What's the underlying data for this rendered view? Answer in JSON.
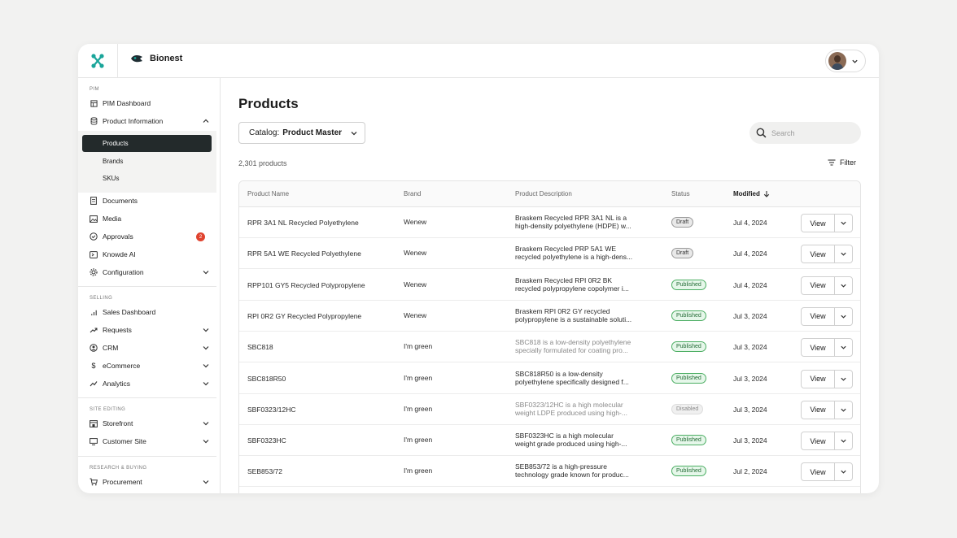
{
  "app": {
    "workspace": "Bionest",
    "colors": {
      "accent": "#1aa59a",
      "nav_active": "#232a2b",
      "badge": "#e0432f",
      "published": "#4cae63"
    }
  },
  "sidebar": {
    "sections": {
      "pim": "PIM",
      "selling": "SELLING",
      "site_editing": "SITE EDITING",
      "research": "RESEARCH & BUYING"
    },
    "pim_dashboard": "PIM Dashboard",
    "product_information": "Product Information",
    "sub": {
      "products": "Products",
      "brands": "Brands",
      "skus": "SKUs"
    },
    "documents": "Documents",
    "media": "Media",
    "approvals": "Approvals",
    "approvals_count": "2",
    "knowde_ai": "Knowde AI",
    "configuration": "Configuration",
    "sales_dashboard": "Sales Dashboard",
    "requests": "Requests",
    "crm": "CRM",
    "ecommerce": "eCommerce",
    "analytics": "Analytics",
    "storefront": "Storefront",
    "customer_site": "Customer Site",
    "procurement": "Procurement"
  },
  "main": {
    "title": "Products",
    "catalog_label": "Catalog:",
    "catalog_value": "Product Master",
    "search_placeholder": "Search",
    "count": "2,301 products",
    "filter": "Filter",
    "columns": {
      "name": "Product Name",
      "brand": "Brand",
      "description": "Product Description",
      "status": "Status",
      "modified": "Modified"
    },
    "view_label": "View",
    "rows": [
      {
        "name": "RPR 3A1 NL Recycled Polyethylene",
        "brand": "Wenew",
        "desc1": "Braskem Recycled RPR 3A1 NL is a",
        "desc2": "high-density polyethylene (HDPE) w...",
        "status": "Draft",
        "modified": "Jul 4, 2024"
      },
      {
        "name": "RPR 5A1 WE Recycled Polyethylene",
        "brand": "Wenew",
        "desc1": "Braskem Recycled PRP 5A1 WE",
        "desc2": "recycled polyethylene is a high-dens...",
        "status": "Draft",
        "modified": "Jul 4, 2024"
      },
      {
        "name": "RPP101 GY5 Recycled Polypropylene",
        "brand": "Wenew",
        "desc1": "Braskem Recycled RPI 0R2 BK",
        "desc2": "recycled polypropylene copolymer i...",
        "status": "Published",
        "modified": "Jul 4, 2024"
      },
      {
        "name": "RPI 0R2 GY Recycled Polypropylene",
        "brand": "Wenew",
        "desc1": "Braskem RPI 0R2 GY recycled",
        "desc2": "polypropylene is a sustainable soluti...",
        "status": "Published",
        "modified": "Jul 3, 2024"
      },
      {
        "name": "SBC818",
        "brand": "I'm green",
        "desc1": "SBC818 is a low-density polyethylene",
        "desc2": "specially formulated for coating pro...",
        "status": "Published",
        "modified": "Jul 3, 2024"
      },
      {
        "name": "SBC818R50",
        "brand": "I'm green",
        "desc1": "SBC818R50 is a low-density",
        "desc2": "polyethylene specifically designed f...",
        "status": "Published",
        "modified": "Jul 3, 2024"
      },
      {
        "name": "SBF0323/12HC",
        "brand": "I'm green",
        "desc1": "SBF0323/12HC is a high molecular",
        "desc2": "weight LDPE produced using high-...",
        "status": "Disabled",
        "modified": "Jul 3, 2024"
      },
      {
        "name": "SBF0323HC",
        "brand": "I'm green",
        "desc1": "SBF0323HC is a high molecular",
        "desc2": "weight grade produced using high-...",
        "status": "Published",
        "modified": "Jul 3, 2024"
      },
      {
        "name": "SEB853/72",
        "brand": "I'm green",
        "desc1": "SEB853/72 is a high-pressure",
        "desc2": "technology grade known for produc...",
        "status": "Published",
        "modified": "Jul 2, 2024"
      }
    ]
  }
}
